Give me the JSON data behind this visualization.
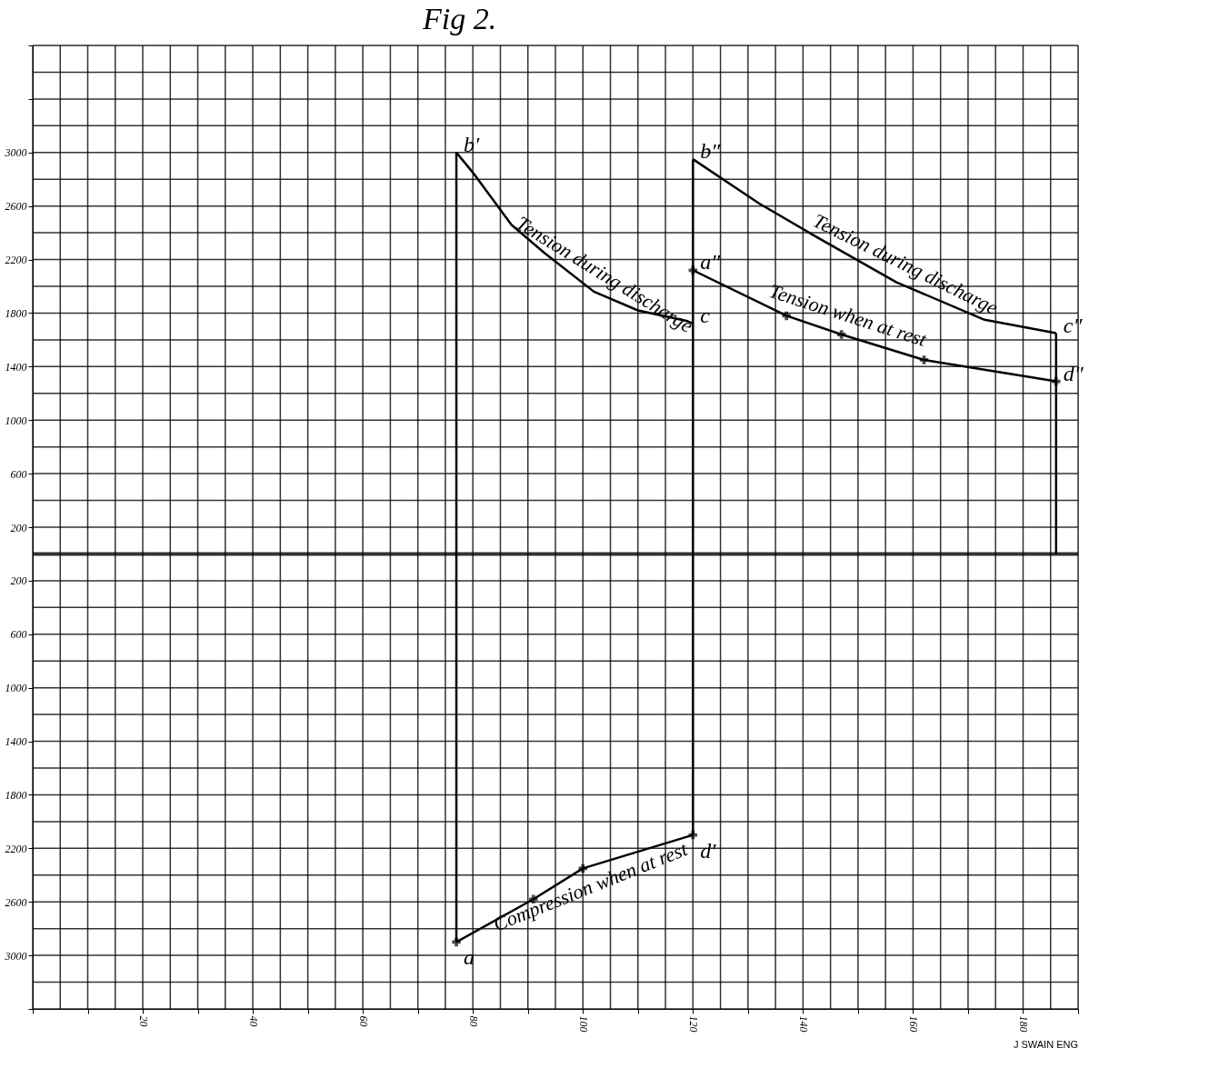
{
  "chart_data": {
    "type": "line",
    "title": "Fig 2.",
    "xlim": [
      0,
      190
    ],
    "ylim": [
      -3400,
      3800
    ],
    "xticks": [
      {
        "value": 0,
        "label": null
      },
      {
        "value": 5,
        "label": null
      },
      {
        "value": 10,
        "label": null
      },
      {
        "value": 15,
        "label": null
      },
      20,
      {
        "value": 25,
        "label": null
      },
      {
        "value": 30,
        "label": null
      },
      {
        "value": 35,
        "label": null
      },
      40,
      {
        "value": 45,
        "label": null
      },
      {
        "value": 50,
        "label": null
      },
      {
        "value": 55,
        "label": null
      },
      60,
      {
        "value": 65,
        "label": null
      },
      {
        "value": 70,
        "label": null
      },
      {
        "value": 75,
        "label": null
      },
      80,
      {
        "value": 85,
        "label": null
      },
      {
        "value": 90,
        "label": null
      },
      {
        "value": 95,
        "label": null
      },
      100,
      {
        "value": 105,
        "label": null
      },
      {
        "value": 110,
        "label": null
      },
      {
        "value": 115,
        "label": null
      },
      120,
      {
        "value": 125,
        "label": null
      },
      {
        "value": 130,
        "label": null
      },
      {
        "value": 135,
        "label": null
      },
      140,
      {
        "value": 145,
        "label": null
      },
      {
        "value": 150,
        "label": null
      },
      {
        "value": 155,
        "label": null
      },
      160,
      {
        "value": 165,
        "label": null
      },
      {
        "value": 170,
        "label": null
      },
      {
        "value": 175,
        "label": null
      },
      180,
      {
        "value": 185,
        "label": null
      },
      {
        "value": 190,
        "label": null
      }
    ],
    "yticks": [
      {
        "value": -3400,
        "label": null
      },
      {
        "value": -3200,
        "label": null
      },
      {
        "value": -3000,
        "label": "3000"
      },
      {
        "value": -2800,
        "label": null
      },
      {
        "value": -2600,
        "label": "2600"
      },
      {
        "value": -2400,
        "label": null
      },
      {
        "value": -2200,
        "label": "2200"
      },
      {
        "value": -2000,
        "label": null
      },
      {
        "value": -1800,
        "label": "1800"
      },
      {
        "value": -1600,
        "label": null
      },
      {
        "value": -1400,
        "label": "1400"
      },
      {
        "value": -1200,
        "label": null
      },
      {
        "value": -1000,
        "label": "1000"
      },
      {
        "value": -800,
        "label": null
      },
      {
        "value": -600,
        "label": "600"
      },
      {
        "value": -400,
        "label": null
      },
      {
        "value": -200,
        "label": "200"
      },
      {
        "value": 0,
        "label": null
      },
      200,
      {
        "value": 400,
        "label": null
      },
      600,
      {
        "value": 800,
        "label": null
      },
      1000,
      {
        "value": 1200,
        "label": null
      },
      1400,
      {
        "value": 1600,
        "label": null
      },
      1800,
      {
        "value": 2000,
        "label": null
      },
      2200,
      {
        "value": 2400,
        "label": null
      },
      2600,
      {
        "value": 2800,
        "label": null
      },
      3000,
      {
        "value": 3200,
        "label": null
      },
      {
        "value": 3400,
        "label": null
      },
      {
        "value": 3600,
        "label": null
      },
      {
        "value": 3800,
        "label": null
      }
    ],
    "grid": true,
    "series": [
      {
        "name": "Tension during discharge",
        "color": "#000000",
        "x": [
          77,
          80,
          87,
          93,
          102,
          110,
          119,
          120
        ],
        "values": [
          3000,
          2850,
          2460,
          2250,
          1960,
          1820,
          1740,
          1720
        ]
      },
      {
        "name": "Tension during discharge",
        "color": "#000000",
        "x": [
          120,
          132,
          142,
          157,
          173,
          186
        ],
        "values": [
          2950,
          2620,
          2380,
          2030,
          1750,
          1650
        ]
      },
      {
        "name": "Tension when at rest",
        "color": "#000000",
        "marker": "cross",
        "x": [
          120,
          137,
          147,
          162,
          186
        ],
        "values": [
          2120,
          1780,
          1640,
          1450,
          1290
        ]
      },
      {
        "name": "Compression when at rest",
        "color": "#000000",
        "marker": "cross",
        "x": [
          77,
          91,
          100,
          120
        ],
        "values": [
          -2900,
          -2580,
          -2350,
          -2100
        ]
      },
      {
        "color": "#000000",
        "x": [
          77,
          77
        ],
        "values": [
          3000,
          -2900
        ]
      },
      {
        "color": "#000000",
        "x": [
          120,
          120
        ],
        "values": [
          2950,
          -2100
        ]
      },
      {
        "color": "#000000",
        "x": [
          186,
          186
        ],
        "values": [
          1650,
          0
        ]
      }
    ],
    "annotations": [
      {
        "text": "b′",
        "x": 77,
        "y": 3000
      },
      {
        "text": "c",
        "x": 120,
        "y": 1720
      },
      {
        "text": "b″",
        "x": 120,
        "y": 2950
      },
      {
        "text": "a″",
        "x": 120,
        "y": 2120
      },
      {
        "text": "c″",
        "x": 186,
        "y": 1650
      },
      {
        "text": "d″",
        "x": 186,
        "y": 1290
      },
      {
        "text": "a",
        "x": 77,
        "y": -2900
      },
      {
        "text": "d′",
        "x": 120,
        "y": -2100
      },
      "J SWAIN ENG"
    ]
  }
}
